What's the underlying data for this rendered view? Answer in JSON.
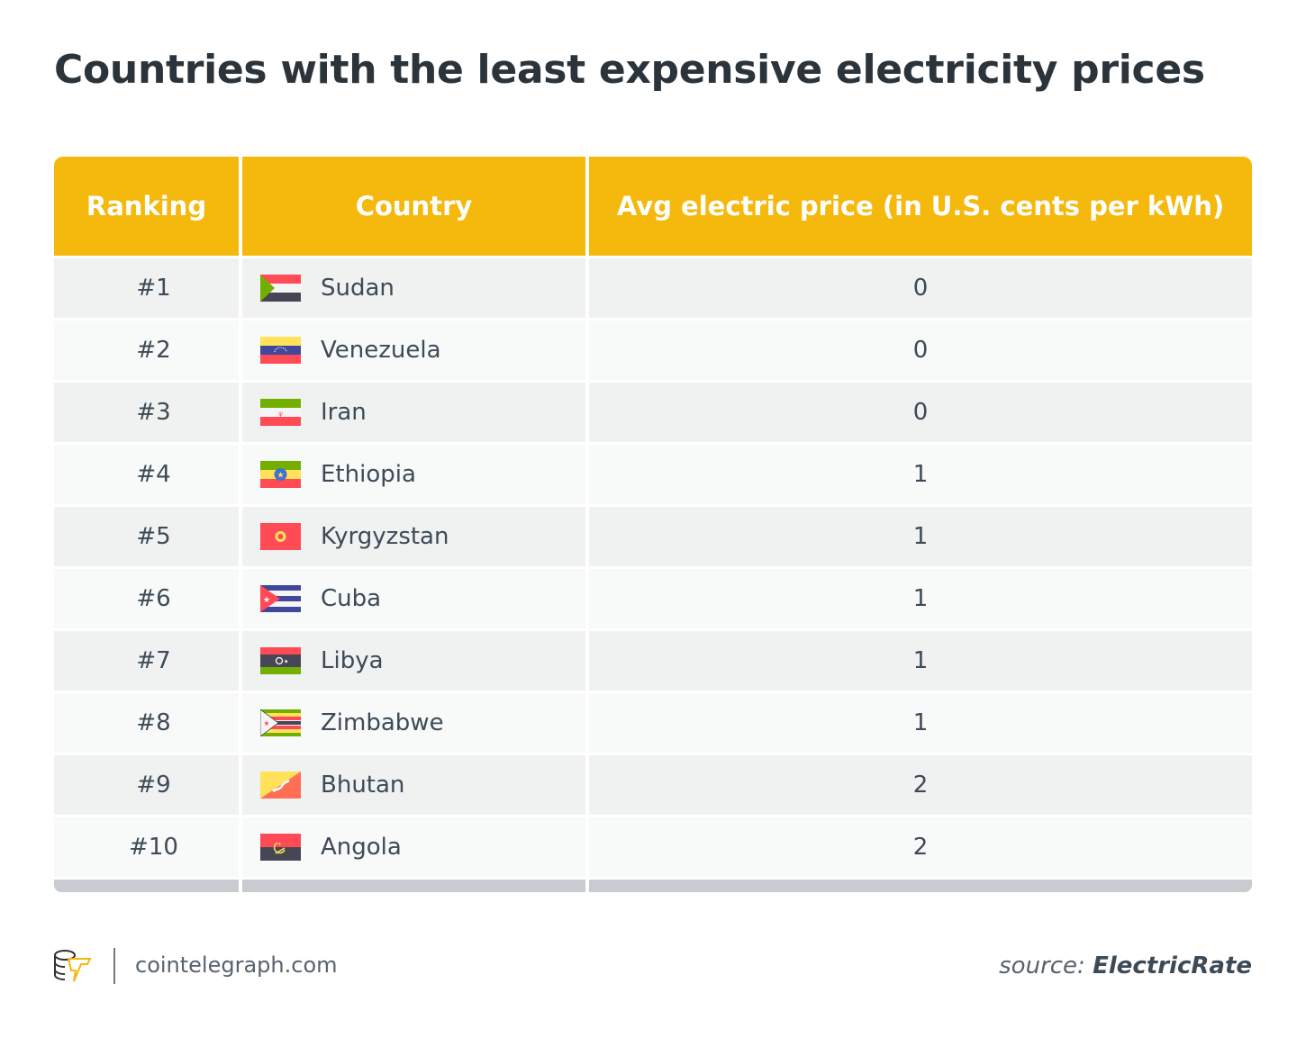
{
  "title": "Countries with the least expensive electricity prices",
  "table": {
    "headers": [
      "Ranking",
      "Country",
      "Avg electric price (in U.S. cents per kWh)"
    ],
    "rows": [
      {
        "rank": "#1",
        "country": "Sudan",
        "flag": "sudan-flag-icon",
        "price": "0"
      },
      {
        "rank": "#2",
        "country": "Venezuela",
        "flag": "venezuela-flag-icon",
        "price": "0"
      },
      {
        "rank": "#3",
        "country": "Iran",
        "flag": "iran-flag-icon",
        "price": "0"
      },
      {
        "rank": "#4",
        "country": "Ethiopia",
        "flag": "ethiopia-flag-icon",
        "price": "1"
      },
      {
        "rank": "#5",
        "country": "Kyrgyzstan",
        "flag": "kyrgyzstan-flag-icon",
        "price": "1"
      },
      {
        "rank": "#6",
        "country": "Cuba",
        "flag": "cuba-flag-icon",
        "price": "1"
      },
      {
        "rank": "#7",
        "country": "Libya",
        "flag": "libya-flag-icon",
        "price": "1"
      },
      {
        "rank": "#8",
        "country": "Zimbabwe",
        "flag": "zimbabwe-flag-icon",
        "price": "1"
      },
      {
        "rank": "#9",
        "country": "Bhutan",
        "flag": "bhutan-flag-icon",
        "price": "2"
      },
      {
        "rank": "#10",
        "country": "Angola",
        "flag": "angola-flag-icon",
        "price": "2"
      }
    ]
  },
  "footer": {
    "logo_icon": "cointelegraph-logo-icon",
    "site": "cointelegraph.com",
    "source_label": "source:",
    "source_name": "ElectricRate"
  },
  "colors": {
    "header": "#f5b80c",
    "footer_bar": "#c8ccd0",
    "title": "#2b343b"
  }
}
